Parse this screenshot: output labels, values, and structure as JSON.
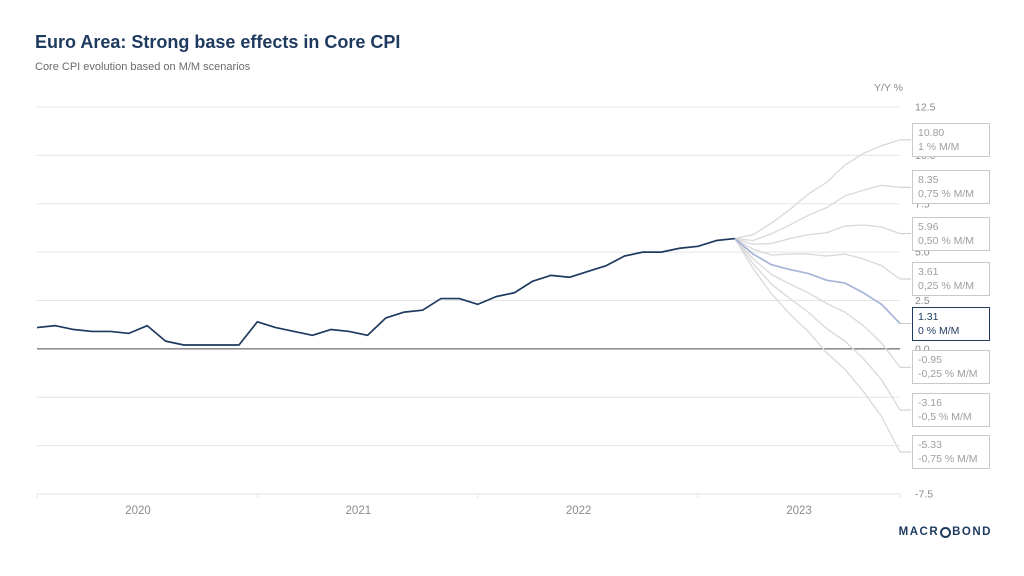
{
  "header": {
    "title": "Euro Area: Strong base effects in Core CPI",
    "subtitle": "Core CPI evolution based on M/M scenarios"
  },
  "y_axis_unit": "Y/Y %",
  "brand": {
    "left": "MACR",
    "right": "BOND"
  },
  "colors": {
    "navy": "#1e3a5f",
    "highlight_line": "#a6b5d8",
    "scenario_line": "#dbdbdb",
    "grid": "#e5e5e5",
    "zero_line": "#4a4a4a",
    "tick_text": "#8c8c8c",
    "box_border": "#c9c9c9",
    "box_text": "#9e9e9e"
  },
  "chart_data": {
    "type": "line",
    "title": "Euro Area: Strong base effects in Core CPI",
    "subtitle": "Core CPI evolution based on M/M scenarios",
    "ylabel": "Y/Y %",
    "xlabel": "",
    "ylim": [
      -7.5,
      12.5
    ],
    "grid": "horizontal",
    "legend_position": "none",
    "x_start": "2020-01",
    "x_end": "2023-12",
    "xticks": [
      "2020",
      "2021",
      "2022",
      "2023"
    ],
    "yticks": [
      {
        "label": "12.5",
        "value": 12.5
      },
      {
        "label": "10.0",
        "value": 10.0
      },
      {
        "label": "7.5",
        "value": 7.5
      },
      {
        "label": "5.0",
        "value": 5.0
      },
      {
        "label": "2.5",
        "value": 2.5
      },
      {
        "label": "0.0",
        "value": 0.0
      },
      {
        "label": "-2.5",
        "value": -2.5
      },
      {
        "label": "-5.0",
        "value": -5.0
      },
      {
        "label": "-7.5",
        "value": -7.5
      }
    ],
    "history": {
      "name": "Core CPI Y/Y %",
      "start": "2020-01",
      "frequency": "monthly",
      "values": [
        1.1,
        1.2,
        1.0,
        0.9,
        0.9,
        0.8,
        1.2,
        0.4,
        0.2,
        0.2,
        0.2,
        0.2,
        1.4,
        1.1,
        0.9,
        0.7,
        1.0,
        0.9,
        0.7,
        1.6,
        1.9,
        2.0,
        2.6,
        2.6,
        2.3,
        2.7,
        2.9,
        3.5,
        3.8,
        3.7,
        4.0,
        4.3,
        4.8,
        5.0,
        5.0,
        5.2,
        5.3,
        5.6,
        5.7
      ]
    },
    "scenario_start": "2023-03",
    "scenario_start_index": 38,
    "scenarios": [
      {
        "value_label": "10.80",
        "scenario_label": "1 % M/M",
        "end_value": 10.8,
        "highlight": false,
        "values": [
          5.7,
          5.9,
          6.5,
          7.2,
          8.0,
          8.6,
          9.5,
          10.1,
          10.5,
          10.8
        ]
      },
      {
        "value_label": "8.35",
        "scenario_label": "0,75 % M/M",
        "end_value": 8.35,
        "highlight": false,
        "values": [
          5.7,
          5.6,
          5.95,
          6.4,
          6.9,
          7.3,
          7.9,
          8.2,
          8.45,
          8.35
        ]
      },
      {
        "value_label": "5.96",
        "scenario_label": "0,50 % M/M",
        "end_value": 5.96,
        "highlight": false,
        "values": [
          5.7,
          5.4,
          5.45,
          5.7,
          5.9,
          6.0,
          6.35,
          6.4,
          6.3,
          5.96
        ]
      },
      {
        "value_label": "3.61",
        "scenario_label": "0,25 % M/M",
        "end_value": 3.61,
        "highlight": false,
        "values": [
          5.7,
          5.15,
          4.85,
          4.9,
          4.9,
          4.8,
          4.9,
          4.65,
          4.3,
          3.61
        ]
      },
      {
        "value_label": "1.31",
        "scenario_label": "0 % M/M",
        "end_value": 1.31,
        "highlight": true,
        "values": [
          5.7,
          4.9,
          4.35,
          4.1,
          3.9,
          3.55,
          3.4,
          2.9,
          2.3,
          1.31
        ]
      },
      {
        "value_label": "-0.95",
        "scenario_label": "-0,25 % M/M",
        "end_value": -0.95,
        "highlight": false,
        "values": [
          5.7,
          4.65,
          3.85,
          3.35,
          2.9,
          2.35,
          1.9,
          1.2,
          0.3,
          -0.95
        ]
      },
      {
        "value_label": "-3.16",
        "scenario_label": "-0,5 % M/M",
        "end_value": -3.16,
        "highlight": false,
        "values": [
          5.7,
          4.4,
          3.35,
          2.6,
          1.9,
          1.05,
          0.4,
          -0.5,
          -1.6,
          -3.16
        ]
      },
      {
        "value_label": "-5.33",
        "scenario_label": "-0,75 % M/M",
        "end_value": -5.33,
        "highlight": false,
        "values": [
          5.7,
          4.15,
          2.85,
          1.8,
          0.9,
          -0.2,
          -1.05,
          -2.2,
          -3.5,
          -5.33
        ]
      }
    ]
  }
}
